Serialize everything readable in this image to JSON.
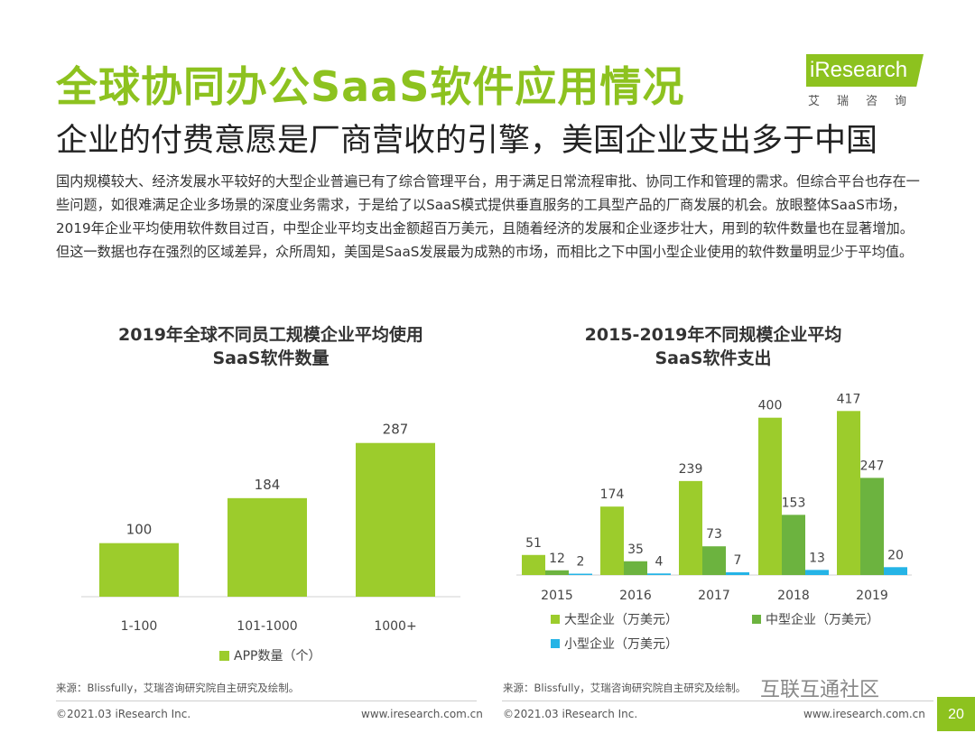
{
  "header": {
    "title": "全球协同办公SaaS软件应用情况",
    "subtitle": "企业的付费意愿是厂商营收的引擎，美国企业支出多于中国"
  },
  "logo": {
    "text": "iResearch",
    "cn": "艾瑞咨询"
  },
  "intro": "国内规模较大、经济发展水平较好的大型企业普遍已有了综合管理平台，用于满足日常流程审批、协同工作和管理的需求。但综合平台也存在一些问题，如很难满足企业多场景的深度业务需求，于是给了以SaaS模式提供垂直服务的工具型产品的厂商发展的机会。放眼整体SaaS市场，2019年企业平均使用软件数目过百，中型企业平均支出金额超百万美元，且随着经济的发展和企业逐步壮大，用到的软件数量也在显著增加。但这一数据也存在强烈的区域差异，众所周知，美国是SaaS发展最为成熟的市场，而相比之下中国小型企业使用的软件数量明显少于平均值。",
  "colors": {
    "large": "#9ccc2c",
    "medium": "#6cb33f",
    "small": "#25b4e6",
    "single": "#9ccc2c"
  },
  "chart_data": [
    {
      "type": "bar",
      "title": "2019年全球不同员工规模企业平均使用SaaS软件数量",
      "title_lines": [
        "2019年全球不同员工规模企业平均使用",
        "SaaS软件数量"
      ],
      "categories": [
        "1-100",
        "101-1000",
        "1000+"
      ],
      "series": [
        {
          "name": "APP数量（个）",
          "values": [
            100,
            184,
            287
          ]
        }
      ],
      "ylim": [
        0,
        300
      ],
      "legend": "bottom",
      "grid": false
    },
    {
      "type": "bar",
      "title": "2015-2019年不同规模企业平均SaaS软件支出",
      "title_lines": [
        "2015-2019年不同规模企业平均",
        "SaaS软件支出"
      ],
      "categories": [
        "2015",
        "2016",
        "2017",
        "2018",
        "2019"
      ],
      "series": [
        {
          "name": "大型企业（万美元）",
          "values": [
            51,
            174,
            239,
            400,
            417
          ]
        },
        {
          "name": "中型企业（万美元）",
          "values": [
            12,
            35,
            73,
            153,
            247
          ]
        },
        {
          "name": "小型企业（万美元）",
          "values": [
            2,
            4,
            7,
            13,
            20
          ]
        }
      ],
      "ylim": [
        0,
        420
      ],
      "legend": "bottom",
      "grid": false
    }
  ],
  "sources": {
    "left": "来源：Blissfully，艾瑞咨询研究院自主研究及绘制。",
    "right": "来源：Blissfully，艾瑞咨询研究院自主研究及绘制。"
  },
  "footer": {
    "copyright_left": "©2021.03 iResearch Inc.",
    "url_left": "www.iresearch.com.cn",
    "copyright_right": "©2021.03 iResearch Inc.",
    "url_right": "www.iresearch.com.cn",
    "page": "20"
  },
  "watermark": "互联互通社区"
}
